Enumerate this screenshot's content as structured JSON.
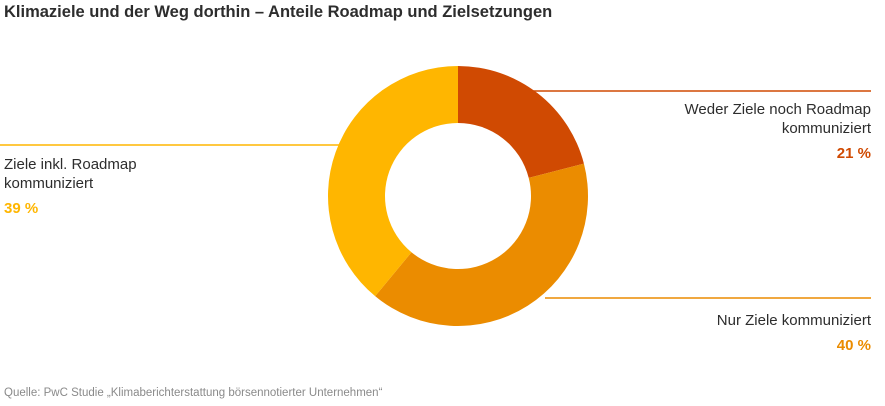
{
  "title": "Klimaziele und der Weg dorthin – Anteile Roadmap und Zielsetzungen",
  "source": "Quelle: PwC Studie „Klimaberichterstattung börsennotierter Unternehmen“",
  "chart_data": {
    "type": "pie",
    "donut": true,
    "title": "Klimaziele und der Weg dorthin – Anteile Roadmap und Zielsetzungen",
    "series": [
      {
        "name": "Anteile",
        "slices": [
          {
            "label_lines": [
              "Weder Ziele noch Roadmap",
              "kommuniziert"
            ],
            "value": 21,
            "value_label": "21 %",
            "color": "#d04a02"
          },
          {
            "label_lines": [
              "Nur Ziele kommuniziert"
            ],
            "value": 40,
            "value_label": "40 %",
            "color": "#eb8c00"
          },
          {
            "label_lines": [
              "Ziele inkl. Roadmap",
              "kommuniziert"
            ],
            "value": 39,
            "value_label": "39 %",
            "color": "#ffb600"
          }
        ]
      }
    ]
  }
}
